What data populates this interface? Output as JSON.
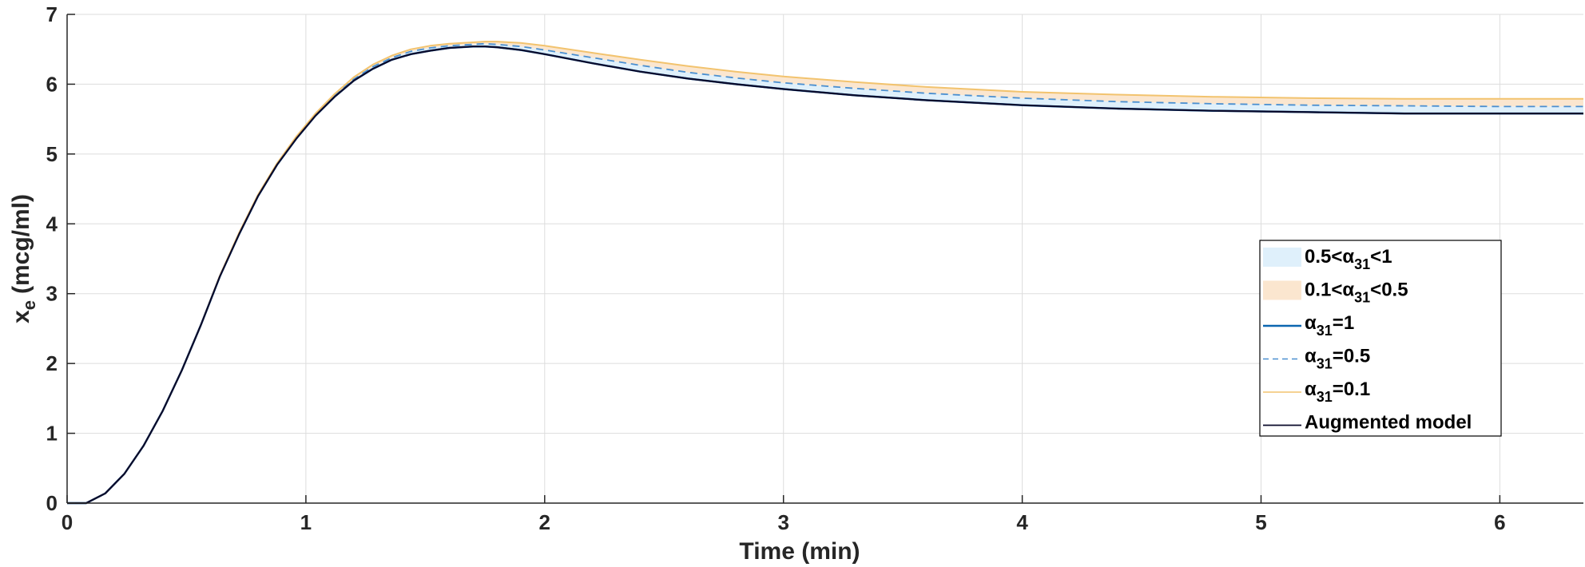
{
  "chart_data": {
    "type": "line",
    "title": "",
    "xlabel": "Time (min)",
    "ylabel": {
      "main": "x",
      "sub": "e",
      "unit": "(mcg/ml)"
    },
    "xlim": [
      0,
      6.35
    ],
    "ylim": [
      0,
      7
    ],
    "xticks": [
      0,
      1,
      2,
      3,
      4,
      5,
      6
    ],
    "yticks": [
      0,
      1,
      2,
      3,
      4,
      5,
      6,
      7
    ],
    "grid": true,
    "legend_position": "lower-right",
    "colors": {
      "band_high": "#dff0fb",
      "band_low": "#fbe6cf",
      "alpha1": "#0b66b0",
      "alpha05": "#4a8fd0",
      "alpha01": "#f2c36e",
      "augmented": "#0a0a2a",
      "grid": "#dddddd",
      "axis": "#262626"
    },
    "x": [
      0,
      0.08,
      0.16,
      0.24,
      0.32,
      0.4,
      0.48,
      0.56,
      0.64,
      0.72,
      0.8,
      0.88,
      0.96,
      1.04,
      1.12,
      1.2,
      1.28,
      1.36,
      1.44,
      1.52,
      1.6,
      1.7,
      1.75,
      1.8,
      1.9,
      2.0,
      2.2,
      2.4,
      2.6,
      2.8,
      3.0,
      3.3,
      3.6,
      4.0,
      4.4,
      4.8,
      5.2,
      5.6,
      6.0,
      6.35
    ],
    "series": [
      {
        "name": "α31=1",
        "line": "solid",
        "values": [
          0,
          0,
          0.14,
          0.42,
          0.82,
          1.32,
          1.9,
          2.55,
          3.25,
          3.85,
          4.4,
          4.85,
          5.22,
          5.55,
          5.82,
          6.05,
          6.22,
          6.35,
          6.43,
          6.48,
          6.52,
          6.54,
          6.54,
          6.53,
          6.49,
          6.43,
          6.3,
          6.18,
          6.08,
          6.0,
          5.93,
          5.84,
          5.77,
          5.7,
          5.65,
          5.62,
          5.6,
          5.58,
          5.58,
          5.58
        ]
      },
      {
        "name": "α31=0.5",
        "line": "dashed",
        "values": [
          0,
          0,
          0.14,
          0.42,
          0.82,
          1.32,
          1.9,
          2.55,
          3.25,
          3.86,
          4.41,
          4.86,
          5.23,
          5.56,
          5.84,
          6.07,
          6.25,
          6.38,
          6.47,
          6.52,
          6.55,
          6.57,
          6.58,
          6.57,
          6.54,
          6.49,
          6.38,
          6.27,
          6.17,
          6.09,
          6.02,
          5.94,
          5.87,
          5.8,
          5.75,
          5.72,
          5.7,
          5.69,
          5.68,
          5.68
        ]
      },
      {
        "name": "α31=0.1",
        "line": "solid",
        "values": [
          0,
          0,
          0.14,
          0.42,
          0.82,
          1.32,
          1.9,
          2.55,
          3.26,
          3.87,
          4.42,
          4.87,
          5.25,
          5.58,
          5.86,
          6.1,
          6.28,
          6.41,
          6.5,
          6.55,
          6.58,
          6.6,
          6.61,
          6.61,
          6.59,
          6.55,
          6.45,
          6.35,
          6.26,
          6.18,
          6.11,
          6.03,
          5.96,
          5.89,
          5.85,
          5.82,
          5.8,
          5.79,
          5.79,
          5.79
        ]
      },
      {
        "name": "Augmented model",
        "line": "solid",
        "values": [
          0,
          0,
          0.14,
          0.42,
          0.82,
          1.32,
          1.9,
          2.55,
          3.25,
          3.85,
          4.4,
          4.85,
          5.22,
          5.55,
          5.82,
          6.05,
          6.22,
          6.35,
          6.43,
          6.48,
          6.52,
          6.54,
          6.54,
          6.53,
          6.49,
          6.43,
          6.3,
          6.18,
          6.08,
          6.0,
          5.93,
          5.84,
          5.77,
          5.7,
          5.65,
          5.62,
          5.6,
          5.58,
          5.58,
          5.58
        ]
      }
    ],
    "bands": [
      {
        "name": "0.5<α31<1",
        "from_series": 0,
        "to_series": 1
      },
      {
        "name": "0.1<α31<0.5",
        "from_series": 1,
        "to_series": 2
      }
    ],
    "legend": [
      {
        "pre": "0.5<α",
        "sub": "31",
        "post": "<1",
        "style": "band_high"
      },
      {
        "pre": "0.1<α",
        "sub": "31",
        "post": "<0.5",
        "style": "band_low"
      },
      {
        "pre": "α",
        "sub": "31",
        "post": "=1",
        "style": "alpha1"
      },
      {
        "pre": "α",
        "sub": "31",
        "post": "=0.5",
        "style": "alpha05"
      },
      {
        "pre": "α",
        "sub": "31",
        "post": "=0.1",
        "style": "alpha01"
      },
      {
        "pre": "Augmented model",
        "sub": "",
        "post": "",
        "style": "augmented"
      }
    ]
  }
}
